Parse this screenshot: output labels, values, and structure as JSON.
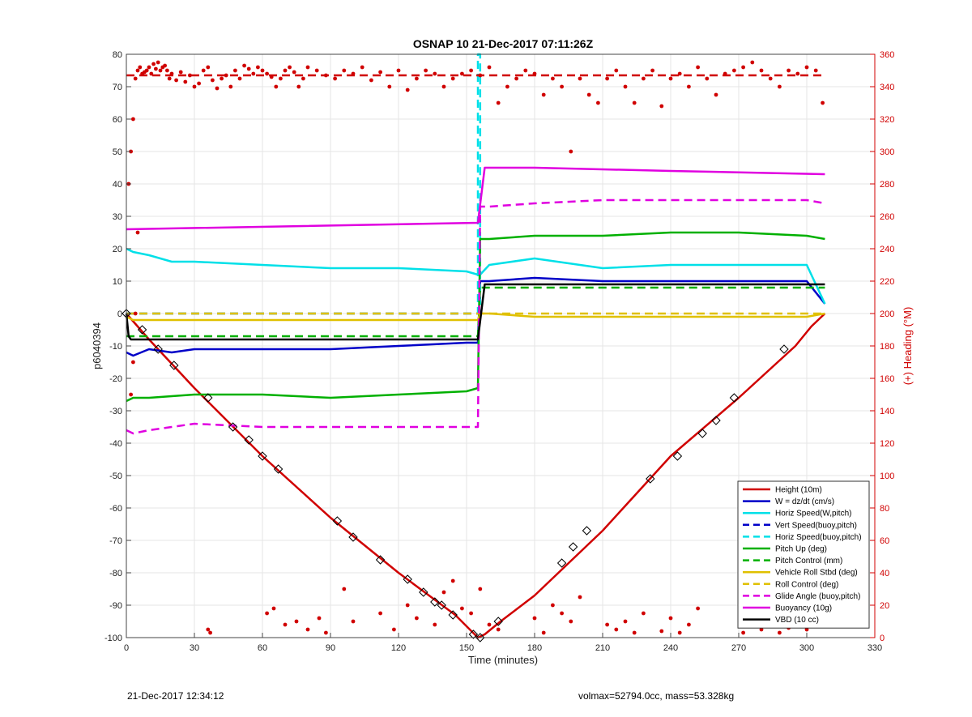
{
  "chart_data": {
    "type": "line",
    "title": "OSNAP 10 21-Dec-2017 07:11:26Z",
    "xlabel": "Time (minutes)",
    "ylabel": "p6040394",
    "y2label": "(+) Heading (°M)",
    "xlim": [
      0,
      330
    ],
    "ylim": [
      -100,
      80
    ],
    "y2lim": [
      0,
      360
    ],
    "xticks": [
      0,
      30,
      60,
      90,
      120,
      150,
      180,
      210,
      240,
      270,
      300,
      330
    ],
    "yticks": [
      -100,
      -90,
      -80,
      -70,
      -60,
      -50,
      -40,
      -30,
      -20,
      -10,
      0,
      10,
      20,
      30,
      40,
      50,
      60,
      70,
      80
    ],
    "y2ticks": [
      0,
      20,
      40,
      60,
      80,
      100,
      120,
      140,
      160,
      180,
      200,
      220,
      240,
      260,
      280,
      300,
      320,
      340,
      360
    ],
    "grid": true,
    "legend_position": "lower-right",
    "series": [
      {
        "name": "Height (10m)",
        "color": "#d00000",
        "style": "solid",
        "x": [
          0,
          10,
          30,
          60,
          90,
          120,
          145,
          155,
          158,
          165,
          180,
          210,
          240,
          270,
          295,
          302,
          308
        ],
        "y": [
          0,
          -8,
          -23,
          -44,
          -63,
          -80,
          -93,
          -100,
          -99,
          -95,
          -87,
          -67,
          -44,
          -26,
          -10,
          -4,
          0
        ]
      },
      {
        "name": "W = dz/dt (cm/s)",
        "color": "#0000c8",
        "style": "solid",
        "x": [
          0,
          3,
          10,
          20,
          30,
          60,
          90,
          120,
          150,
          155,
          156,
          160,
          180,
          210,
          240,
          270,
          300,
          308
        ],
        "y": [
          -12,
          -13,
          -11,
          -12,
          -11,
          -11,
          -11,
          -10,
          -9,
          -9,
          10,
          10,
          11,
          10,
          10,
          10,
          10,
          3
        ]
      },
      {
        "name": "Horiz Speed(W,pitch)",
        "color": "#00e0e8",
        "style": "solid",
        "x": [
          0,
          3,
          10,
          20,
          30,
          60,
          90,
          120,
          150,
          155,
          156,
          160,
          180,
          210,
          240,
          270,
          300,
          308
        ],
        "y": [
          20,
          19,
          18,
          16,
          16,
          15,
          14,
          14,
          13,
          12,
          12,
          15,
          17,
          14,
          15,
          15,
          15,
          3
        ]
      },
      {
        "name": "Vert Speed(buoy,pitch)",
        "color": "#0000c8",
        "style": "dashed",
        "x": [
          0,
          155
        ],
        "y": [
          0,
          0
        ]
      },
      {
        "name": "Horiz Speed(buoy,pitch)",
        "color": "#00e0e8",
        "style": "dashed",
        "x": [
          0,
          155,
          155,
          156,
          156
        ],
        "y": [
          0,
          0,
          80,
          80,
          0
        ]
      },
      {
        "name": "Pitch Up (deg)",
        "color": "#00b000",
        "style": "solid",
        "x": [
          0,
          3,
          10,
          30,
          60,
          90,
          120,
          150,
          155,
          156,
          160,
          180,
          210,
          240,
          270,
          300,
          308
        ],
        "y": [
          -27,
          -26,
          -26,
          -25,
          -25,
          -26,
          -25,
          -24,
          -23,
          23,
          23,
          24,
          24,
          25,
          25,
          24,
          23
        ]
      },
      {
        "name": "Pitch Control (mm)",
        "color": "#00b000",
        "style": "dashed",
        "x": [
          0,
          155,
          156,
          308
        ],
        "y": [
          -7,
          -7,
          8,
          8
        ]
      },
      {
        "name": "Vehicle Roll Stbd (deg)",
        "color": "#e0c000",
        "style": "solid",
        "x": [
          0,
          3,
          30,
          60,
          90,
          120,
          150,
          155,
          156,
          160,
          180,
          210,
          240,
          270,
          300,
          308
        ],
        "y": [
          -1,
          -2,
          -2,
          -2,
          -2,
          -2,
          -2,
          -2,
          0,
          0,
          -1,
          -1,
          -1,
          -1,
          -1,
          0
        ]
      },
      {
        "name": "Roll Control (deg)",
        "color": "#e0c000",
        "style": "dashed",
        "x": [
          0,
          155,
          156,
          308
        ],
        "y": [
          0,
          0,
          0,
          0
        ]
      },
      {
        "name": "Glide Angle (buoy,pitch)",
        "color": "#e000e0",
        "style": "dashed",
        "x": [
          0,
          3,
          10,
          20,
          30,
          60,
          90,
          120,
          150,
          155,
          156,
          160,
          180,
          210,
          240,
          270,
          300,
          308
        ],
        "y": [
          -36,
          -37,
          -36,
          -35,
          -34,
          -35,
          -35,
          -35,
          -35,
          -35,
          33,
          33,
          34,
          35,
          35,
          35,
          35,
          34
        ]
      },
      {
        "name": "Buoyancy (10g)",
        "color": "#e000e0",
        "style": "solid",
        "x": [
          0,
          155,
          158,
          180,
          240,
          308
        ],
        "y": [
          26,
          28,
          45,
          45,
          44,
          43
        ]
      },
      {
        "name": "VBD (10 cc)",
        "color": "#000000",
        "style": "solid",
        "x": [
          0,
          1,
          2,
          155,
          158,
          308
        ],
        "y": [
          0,
          -7,
          -8,
          -8,
          9,
          9
        ]
      }
    ],
    "heading": {
      "color": "#d00000",
      "reference": 347,
      "x": [
        1,
        2,
        3,
        4,
        5,
        6,
        7,
        8,
        9,
        10,
        11,
        12,
        13,
        14,
        15,
        16,
        17,
        18,
        19,
        20,
        22,
        24,
        26,
        28,
        30,
        32,
        34,
        36,
        38,
        40,
        42,
        44,
        46,
        48,
        50,
        52,
        54,
        56,
        58,
        60,
        62,
        64,
        66,
        68,
        70,
        72,
        74,
        76,
        78,
        80,
        84,
        88,
        92,
        96,
        100,
        104,
        108,
        112,
        116,
        120,
        124,
        128,
        132,
        136,
        140,
        144,
        148,
        152,
        156,
        160,
        164,
        168,
        172,
        176,
        180,
        184,
        188,
        192,
        196,
        200,
        204,
        208,
        212,
        216,
        220,
        224,
        228,
        232,
        236,
        240,
        244,
        248,
        252,
        256,
        260,
        264,
        268,
        272,
        276,
        280,
        284,
        288,
        292,
        296,
        300,
        304,
        307,
        2,
        3,
        4,
        5,
        36,
        37,
        62,
        65,
        70,
        75,
        80,
        85,
        88,
        96,
        100,
        112,
        118,
        124,
        128,
        136,
        140,
        144,
        148,
        152,
        156,
        160,
        164,
        180,
        184,
        188,
        192,
        196,
        200,
        212,
        216,
        220,
        224,
        228,
        236,
        240,
        244,
        248,
        252,
        272,
        276,
        280,
        284,
        288,
        292,
        296,
        300
      ],
      "y": [
        280,
        300,
        320,
        345,
        350,
        352,
        348,
        349,
        350,
        352,
        348,
        354,
        351,
        355,
        350,
        352,
        353,
        350,
        345,
        348,
        344,
        349,
        343,
        347,
        340,
        342,
        350,
        352,
        344,
        339,
        345,
        347,
        340,
        350,
        345,
        353,
        351,
        348,
        352,
        350,
        348,
        346,
        340,
        345,
        350,
        352,
        349,
        340,
        345,
        352,
        350,
        347,
        345,
        350,
        348,
        352,
        344,
        349,
        340,
        350,
        338,
        345,
        350,
        348,
        340,
        345,
        348,
        350,
        347,
        352,
        330,
        340,
        345,
        350,
        348,
        335,
        345,
        340,
        300,
        345,
        335,
        330,
        345,
        350,
        340,
        330,
        345,
        350,
        328,
        345,
        348,
        340,
        352,
        345,
        335,
        348,
        350,
        352,
        355,
        350,
        345,
        340,
        350,
        348,
        352,
        350,
        330,
        150,
        170,
        200,
        250,
        5,
        3,
        15,
        18,
        8,
        10,
        5,
        12,
        3,
        30,
        10,
        15,
        5,
        20,
        12,
        8,
        28,
        35,
        18,
        15,
        30,
        8,
        5,
        12,
        3,
        20,
        15,
        10,
        25,
        8,
        5,
        10,
        3,
        15,
        4,
        12,
        3,
        8,
        18,
        3,
        8,
        5,
        12,
        3,
        6,
        20,
        5
      ]
    },
    "markers": {
      "x": [
        0,
        7,
        14,
        21,
        36,
        47,
        54,
        60,
        67,
        93,
        100,
        112,
        124,
        131,
        136,
        139,
        144,
        153,
        156,
        164,
        192,
        197,
        203,
        231,
        243,
        254,
        260,
        268,
        290
      ],
      "y": [
        0,
        -5,
        -11,
        -16,
        -26,
        -35,
        -39,
        -44,
        -48,
        -64,
        -69,
        -76,
        -82,
        -86,
        -89,
        -90,
        -93,
        -99,
        -100,
        -95,
        -77,
        -72,
        -67,
        -51,
        -44,
        -37,
        -33,
        -26,
        -11
      ]
    }
  },
  "footer": {
    "left": "21-Dec-2017 12:34:12",
    "right": "volmax=52794.0cc, mass=53.328kg"
  }
}
